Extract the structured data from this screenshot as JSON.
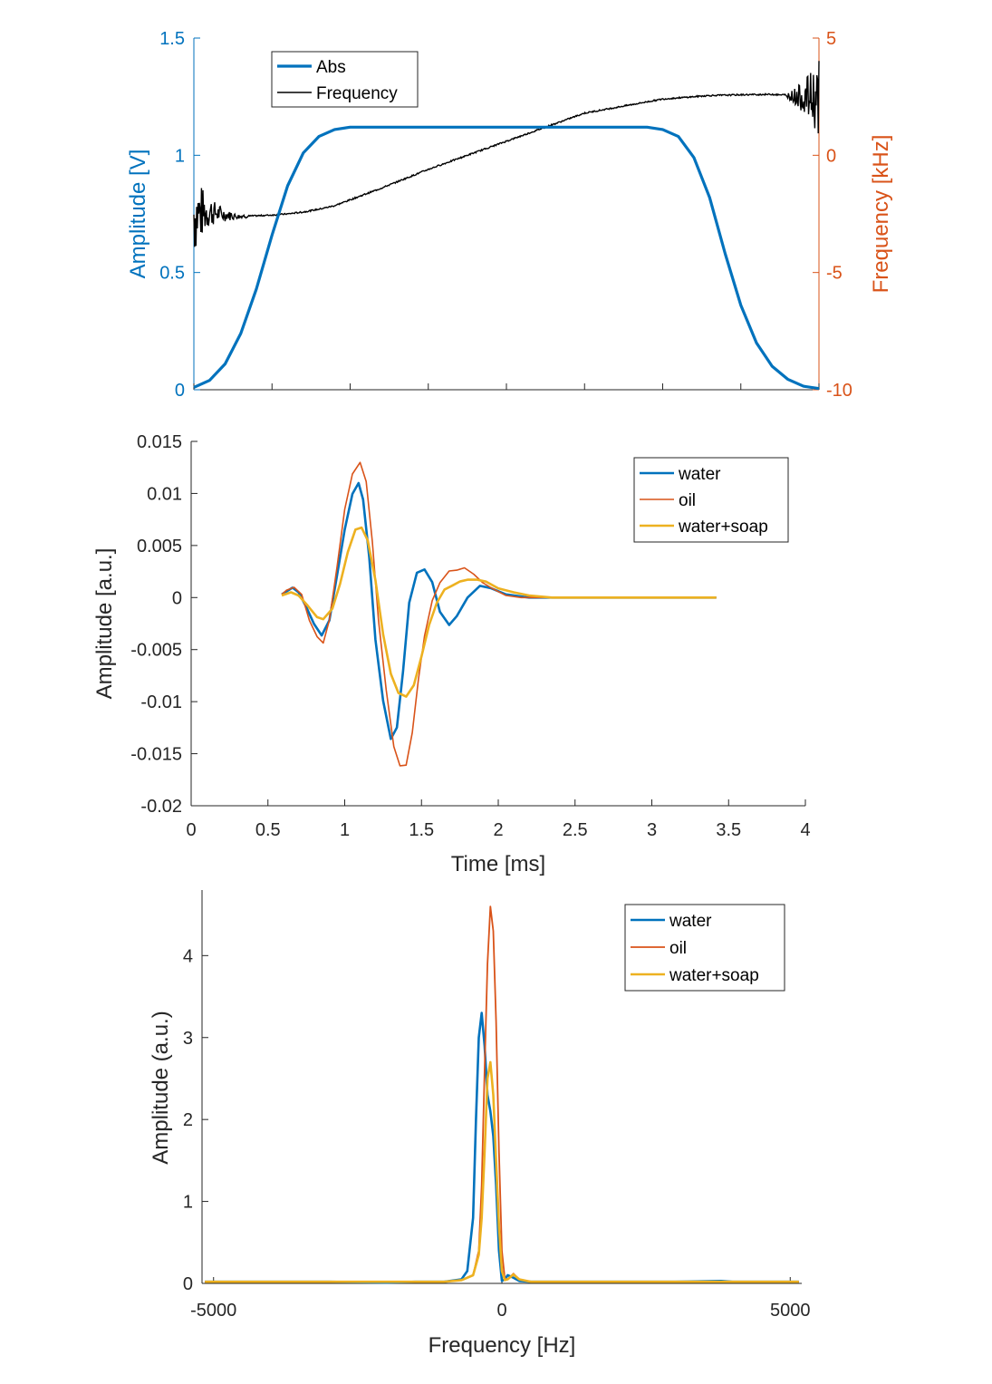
{
  "colors": {
    "blue": "#0072BD",
    "orange": "#D95319",
    "yellow": "#EDB120",
    "black": "#000000",
    "axis": "#262626"
  },
  "chart_data": [
    {
      "type": "line",
      "xlim": [
        0,
        4
      ],
      "ylim_left": [
        0,
        1.5
      ],
      "ylim_right": [
        -10,
        5
      ],
      "ylabel_left": "Amplitude [V]",
      "ylabel_right": "Frequency [kHz]",
      "yticks_left": [
        0,
        0.5,
        1,
        1.5
      ],
      "yticks_left_labels": [
        "0",
        "0.5",
        "1",
        "1.5"
      ],
      "yticks_right": [
        -10,
        -5,
        0,
        5
      ],
      "yticks_right_labels": [
        "-10",
        "-5",
        "0",
        "5"
      ],
      "xticks": [
        0,
        0.5,
        1,
        1.5,
        2,
        2.5,
        3,
        3.5,
        4
      ],
      "legend": {
        "position": "top-left",
        "entries": [
          "Abs",
          "Frequency"
        ]
      },
      "series": [
        {
          "name": "Abs",
          "axis": "left",
          "color": "#0072BD",
          "width": "thick",
          "x": [
            0,
            0.1,
            0.2,
            0.3,
            0.4,
            0.5,
            0.6,
            0.7,
            0.8,
            0.9,
            1.0,
            1.1,
            1.3,
            1.6,
            2.0,
            2.4,
            2.7,
            2.9,
            3.0,
            3.1,
            3.2,
            3.3,
            3.4,
            3.5,
            3.6,
            3.7,
            3.8,
            3.9,
            4.0
          ],
          "y": [
            0.01,
            0.04,
            0.11,
            0.24,
            0.43,
            0.66,
            0.87,
            1.01,
            1.08,
            1.11,
            1.12,
            1.12,
            1.12,
            1.12,
            1.12,
            1.12,
            1.12,
            1.12,
            1.11,
            1.08,
            0.99,
            0.82,
            0.58,
            0.36,
            0.2,
            0.1,
            0.045,
            0.015,
            0.005
          ]
        },
        {
          "name": "Frequency",
          "axis": "right",
          "color": "#000000",
          "width": "thin",
          "x": [
            0,
            0.1,
            0.2,
            0.3,
            0.4,
            0.5,
            0.6,
            0.7,
            0.8,
            0.9,
            1.0,
            1.2,
            1.5,
            2.0,
            2.5,
            3.0,
            3.3,
            3.5,
            3.7,
            3.8,
            3.9,
            4.0
          ],
          "y": [
            -2.5,
            -2.4,
            -2.55,
            -2.6,
            -2.58,
            -2.55,
            -2.5,
            -2.42,
            -2.3,
            -2.15,
            -1.9,
            -1.4,
            -0.6,
            0.6,
            1.8,
            2.4,
            2.55,
            2.58,
            2.6,
            2.55,
            2.5,
            2.45
          ]
        }
      ]
    },
    {
      "type": "line",
      "xlim": [
        0,
        4
      ],
      "ylim": [
        -0.02,
        0.015
      ],
      "xlabel": "Time [ms]",
      "ylabel": "Amplitude [a.u.]",
      "xticks": [
        0,
        0.5,
        1,
        1.5,
        2,
        2.5,
        3,
        3.5,
        4
      ],
      "xticks_labels": [
        "0",
        "0.5",
        "1",
        "1.5",
        "2",
        "2.5",
        "3",
        "3.5",
        "4"
      ],
      "yticks": [
        -0.02,
        -0.015,
        -0.01,
        -0.005,
        0,
        0.005,
        0.01,
        0.015
      ],
      "yticks_labels": [
        "-0.02",
        "-0.015",
        "-0.01",
        "-0.005",
        "0",
        "0.005",
        "0.01",
        "0.015"
      ],
      "legend": {
        "position": "top-right",
        "entries": [
          "water",
          "oil",
          "water+soap"
        ]
      },
      "series": [
        {
          "name": "water",
          "color": "#0072BD",
          "x": [
            0.59,
            0.62,
            0.66,
            0.7,
            0.75,
            0.8,
            0.85,
            0.9,
            0.95,
            1.0,
            1.05,
            1.09,
            1.12,
            1.16,
            1.2,
            1.25,
            1.3,
            1.34,
            1.38,
            1.42,
            1.47,
            1.52,
            1.57,
            1.62,
            1.68,
            1.73,
            1.8,
            1.88,
            1.95,
            2.05,
            2.2,
            2.4,
            2.8,
            3.42
          ],
          "y": [
            0.0003,
            0.0006,
            0.0009,
            0.0005,
            -0.0008,
            -0.0025,
            -0.0035,
            -0.002,
            0.002,
            0.0065,
            0.0098,
            0.0108,
            0.0095,
            0.004,
            -0.004,
            -0.01,
            -0.0135,
            -0.0125,
            -0.007,
            -0.0005,
            0.0023,
            0.0026,
            0.0015,
            -0.0015,
            -0.0026,
            -0.0018,
            0.0,
            0.0013,
            0.0011,
            0.0003,
            0.0,
            0.0,
            0.0,
            0.0
          ]
        },
        {
          "name": "oil",
          "color": "#D95319",
          "x": [
            0.59,
            0.62,
            0.67,
            0.72,
            0.77,
            0.82,
            0.86,
            0.9,
            0.95,
            1.0,
            1.05,
            1.1,
            1.14,
            1.18,
            1.22,
            1.27,
            1.32,
            1.36,
            1.4,
            1.44,
            1.48,
            1.52,
            1.57,
            1.62,
            1.68,
            1.73,
            1.78,
            1.84,
            1.9,
            1.96,
            2.05,
            2.15,
            2.3,
            2.6,
            3.42
          ],
          "y": [
            0.0003,
            0.0007,
            0.001,
            0.0003,
            -0.002,
            -0.0038,
            -0.0042,
            -0.002,
            0.003,
            0.0085,
            0.0118,
            0.0128,
            0.011,
            0.0055,
            -0.002,
            -0.009,
            -0.0145,
            -0.0163,
            -0.0162,
            -0.013,
            -0.008,
            -0.0035,
            -0.0003,
            0.0015,
            0.0025,
            0.0028,
            0.0028,
            0.0023,
            0.0015,
            0.0007,
            0.0002,
            0.0,
            0.0,
            0.0,
            0.0
          ]
        },
        {
          "name": "water+soap",
          "color": "#EDB120",
          "x": [
            0.59,
            0.65,
            0.7,
            0.76,
            0.82,
            0.86,
            0.92,
            0.97,
            1.02,
            1.07,
            1.11,
            1.15,
            1.2,
            1.25,
            1.3,
            1.35,
            1.4,
            1.45,
            1.5,
            1.55,
            1.6,
            1.65,
            1.7,
            1.75,
            1.8,
            1.86,
            1.92,
            2.0,
            2.1,
            2.2,
            2.35,
            2.6,
            3.42
          ],
          "y": [
            0.0002,
            0.0005,
            0.0002,
            -0.0008,
            -0.0018,
            -0.0022,
            -0.0012,
            0.0015,
            0.0045,
            0.0064,
            0.0068,
            0.0055,
            0.0015,
            -0.0035,
            -0.0072,
            -0.0092,
            -0.0097,
            -0.0085,
            -0.0055,
            -0.0025,
            -0.0005,
            0.0008,
            0.0013,
            0.0015,
            0.0016,
            0.0016,
            0.0015,
            0.001,
            0.0005,
            0.0002,
            0.0,
            0.0,
            0.0
          ]
        }
      ]
    },
    {
      "type": "line",
      "xlim": [
        -5200,
        5200
      ],
      "ylim": [
        0,
        4.8
      ],
      "xlabel": "Frequency [Hz]",
      "ylabel": "Amplitude (a.u.)",
      "xticks": [
        -5000,
        0,
        5000
      ],
      "xticks_labels": [
        "-5000",
        "0",
        "5000"
      ],
      "yticks": [
        0,
        1,
        2,
        3,
        4
      ],
      "yticks_labels": [
        "0",
        "1",
        "2",
        "3",
        "4"
      ],
      "legend": {
        "position": "top-right",
        "entries": [
          "water",
          "oil",
          "water+soap"
        ]
      },
      "series": [
        {
          "name": "water",
          "color": "#0072BD",
          "x": [
            -5150,
            -4000,
            -3000,
            -2000,
            -1500,
            -1000,
            -700,
            -600,
            -500,
            -450,
            -400,
            -350,
            -300,
            -250,
            -200,
            -150,
            -100,
            -50,
            0,
            50,
            100,
            200,
            300,
            500,
            1000,
            2000,
            3000,
            3800,
            4000,
            5150
          ],
          "y": [
            0.02,
            0.02,
            0.02,
            0.01,
            0.02,
            0.02,
            0.05,
            0.15,
            0.8,
            2.0,
            3.0,
            3.3,
            2.9,
            2.3,
            2.1,
            1.8,
            1.2,
            0.4,
            0.03,
            0.05,
            0.1,
            0.07,
            0.03,
            0.02,
            0.02,
            0.02,
            0.02,
            0.03,
            0.02,
            0.02
          ]
        },
        {
          "name": "oil",
          "color": "#D95319",
          "x": [
            -5150,
            -3000,
            -1000,
            -700,
            -500,
            -400,
            -350,
            -300,
            -250,
            -200,
            -150,
            -100,
            -50,
            0,
            50,
            100,
            200,
            300,
            500,
            1000,
            3000,
            5150
          ],
          "y": [
            0.02,
            0.02,
            0.02,
            0.04,
            0.1,
            0.4,
            1.2,
            2.6,
            3.9,
            4.6,
            4.3,
            3.2,
            1.6,
            0.4,
            0.06,
            0.05,
            0.12,
            0.05,
            0.02,
            0.02,
            0.02,
            0.02
          ]
        },
        {
          "name": "water+soap",
          "color": "#EDB120",
          "x": [
            -5150,
            -3000,
            -1000,
            -700,
            -500,
            -400,
            -350,
            -300,
            -250,
            -200,
            -150,
            -100,
            -50,
            0,
            50,
            100,
            200,
            300,
            500,
            1000,
            3000,
            5150
          ],
          "y": [
            0.02,
            0.02,
            0.02,
            0.04,
            0.1,
            0.35,
            0.8,
            1.6,
            2.5,
            2.7,
            2.3,
            1.5,
            0.7,
            0.15,
            0.04,
            0.05,
            0.11,
            0.05,
            0.02,
            0.02,
            0.02,
            0.02
          ]
        }
      ]
    }
  ]
}
